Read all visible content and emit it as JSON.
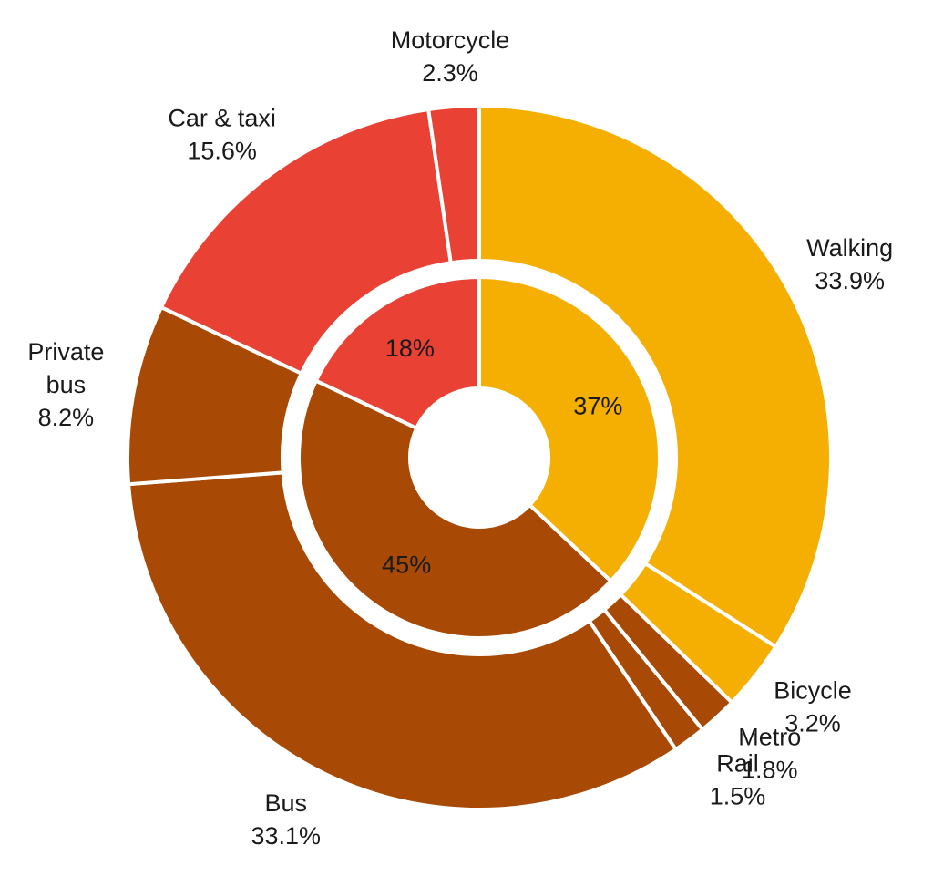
{
  "chart_data": {
    "type": "pie",
    "style": "nested-donut",
    "colors": {
      "walking": "#F5AF02",
      "motorized": "#E94235",
      "public": "#A84A05",
      "separator": "#ffffff"
    },
    "inner": [
      {
        "label": "37%",
        "value": 37,
        "group": "walking"
      },
      {
        "label": "45%",
        "value": 45,
        "group": "public"
      },
      {
        "label": "18%",
        "value": 18,
        "group": "motorized"
      }
    ],
    "outer": [
      {
        "name": "Walking",
        "value": 33.9,
        "pct_label": "33.9%",
        "group": "walking"
      },
      {
        "name": "Bicycle",
        "value": 3.2,
        "pct_label": "3.2%",
        "group": "walking"
      },
      {
        "name": "Metro",
        "value": 1.8,
        "pct_label": "1.8%",
        "group": "public"
      },
      {
        "name": "Rail",
        "value": 1.5,
        "pct_label": "1.5%",
        "group": "public"
      },
      {
        "name": "Bus",
        "value": 33.1,
        "pct_label": "33.1%",
        "group": "public"
      },
      {
        "name": "Private bus",
        "name_lines": [
          "Private",
          "bus"
        ],
        "value": 8.2,
        "pct_label": "8.2%",
        "group": "public"
      },
      {
        "name": "Car & taxi",
        "value": 15.6,
        "pct_label": "15.6%",
        "group": "motorized"
      },
      {
        "name": "Motorcycle",
        "value": 2.3,
        "pct_label": "2.3%",
        "group": "motorized"
      }
    ]
  }
}
